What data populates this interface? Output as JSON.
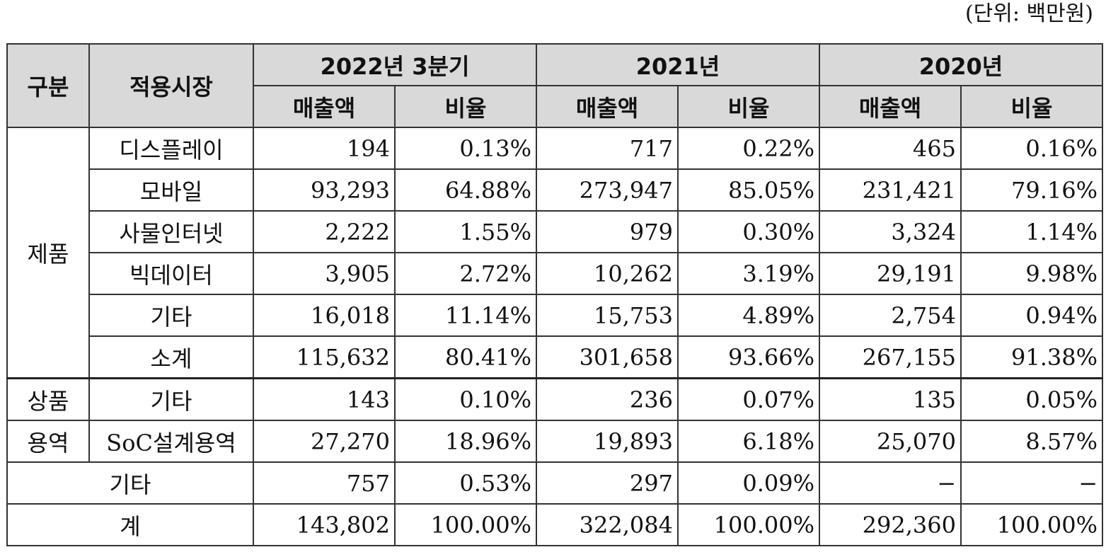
{
  "unit_label": "(단위: 백만원)",
  "header": {
    "category": "구분",
    "market": "적용시장",
    "periods": [
      "2022년 3분기",
      "2021년",
      "2020년"
    ],
    "sales": "매출액",
    "ratio": "비율"
  },
  "groups": {
    "product": "제품",
    "goods": "상품",
    "service": "용역"
  },
  "rows": [
    {
      "market": "디스플레이",
      "values": [
        "194",
        "0.13%",
        "717",
        "0.22%",
        "465",
        "0.16%"
      ]
    },
    {
      "market": "모바일",
      "values": [
        "93,293",
        "64.88%",
        "273,947",
        "85.05%",
        "231,421",
        "79.16%"
      ]
    },
    {
      "market": "사물인터넷",
      "values": [
        "2,222",
        "1.55%",
        "979",
        "0.30%",
        "3,324",
        "1.14%"
      ]
    },
    {
      "market": "빅데이터",
      "values": [
        "3,905",
        "2.72%",
        "10,262",
        "3.19%",
        "29,191",
        "9.98%"
      ]
    },
    {
      "market": "기타",
      "values": [
        "16,018",
        "11.14%",
        "15,753",
        "4.89%",
        "2,754",
        "0.94%"
      ]
    },
    {
      "market": "소계",
      "values": [
        "115,632",
        "80.41%",
        "301,658",
        "93.66%",
        "267,155",
        "91.38%"
      ]
    },
    {
      "market": "기타",
      "values": [
        "143",
        "0.10%",
        "236",
        "0.07%",
        "135",
        "0.05%"
      ]
    },
    {
      "market": "SoC설계용역",
      "values": [
        "27,270",
        "18.96%",
        "19,893",
        "6.18%",
        "25,070",
        "8.57%"
      ]
    },
    {
      "market": "기타",
      "values": [
        "757",
        "0.53%",
        "297",
        "0.09%",
        "−",
        "−"
      ]
    },
    {
      "market": "계",
      "values": [
        "143,802",
        "100.00%",
        "322,084",
        "100.00%",
        "292,360",
        "100.00%"
      ]
    }
  ]
}
